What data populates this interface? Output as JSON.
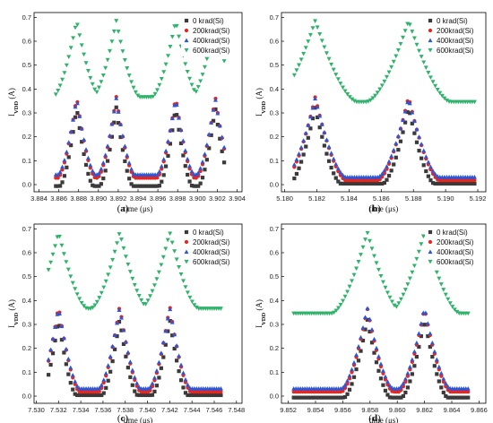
{
  "legend_labels": [
    "0 krad(Si)",
    "200krad(Si)",
    "400krad(Si)",
    "600krad(Si)"
  ],
  "ylabel_main": "I",
  "ylabel_sub": "VDD",
  "ylabel_unit": "(A)",
  "xlabel": "time (μs)",
  "colors": {
    "s0": "#3a3a3a",
    "s200": "#e8251f",
    "s400": "#2a56d9",
    "s600": "#2fb36b"
  },
  "chart_data": [
    {
      "type": "scatter",
      "caption": "(a)",
      "xlabel": "time (μs)",
      "ylabel": "I_VDD (A)",
      "xlim": [
        3.8835,
        3.9045
      ],
      "ylim": [
        -0.03,
        0.72
      ],
      "xticks": [
        "3.884",
        "3.886",
        "3.888",
        "3.890",
        "3.892",
        "3.894",
        "3.896",
        "3.898",
        "3.900",
        "3.902",
        "3.904"
      ],
      "xtick_values": [
        3.884,
        3.886,
        3.888,
        3.89,
        3.892,
        3.894,
        3.896,
        3.898,
        3.9,
        3.902,
        3.904
      ],
      "yticks": [
        "0.0",
        "0.1",
        "0.2",
        "0.3",
        "0.4",
        "0.5",
        "0.6",
        "0.7"
      ],
      "ytick_values": [
        0.0,
        0.1,
        0.2,
        0.3,
        0.4,
        0.5,
        0.6,
        0.7
      ],
      "series": [
        {
          "name": "0 krad(Si)",
          "kind": "peaks",
          "start": 3.8857,
          "end": 3.9027,
          "peaks": [
            3.8878,
            3.8918,
            3.8978,
            3.9018
          ],
          "low": 0.0,
          "high": 0.33,
          "width": 0.0017
        },
        {
          "name": "200krad(Si)",
          "kind": "peaks",
          "start": 3.8857,
          "end": 3.9027,
          "peaks": [
            3.8878,
            3.8918,
            3.8978,
            3.9018
          ],
          "low": 0.03,
          "high": 0.37,
          "width": 0.0019
        },
        {
          "name": "400krad(Si)",
          "kind": "peaks",
          "start": 3.8857,
          "end": 3.9027,
          "peaks": [
            3.8878,
            3.8918,
            3.8978,
            3.9018
          ],
          "low": 0.04,
          "high": 0.36,
          "width": 0.0019
        },
        {
          "name": "600krad(Si)",
          "kind": "peaks",
          "start": 3.8857,
          "end": 3.9027,
          "peaks": [
            3.8878,
            3.8918,
            3.8978,
            3.9018
          ],
          "low": 0.36,
          "high": 0.68,
          "width": 0.0024
        }
      ]
    },
    {
      "type": "scatter",
      "caption": "(b)",
      "xlabel": "time (μs)",
      "ylabel": "I_VDD (A)",
      "xlim": [
        5.1798,
        5.1925
      ],
      "ylim": [
        -0.03,
        0.72
      ],
      "xticks": [
        "5.180",
        "5.182",
        "5.184",
        "5.186",
        "5.188",
        "5.190",
        "5.192"
      ],
      "xtick_values": [
        5.18,
        5.182,
        5.184,
        5.186,
        5.188,
        5.19,
        5.192
      ],
      "yticks": [
        "0.0",
        "0.1",
        "0.2",
        "0.3",
        "0.4",
        "0.5",
        "0.6",
        "0.7"
      ],
      "ytick_values": [
        0.0,
        0.1,
        0.2,
        0.3,
        0.4,
        0.5,
        0.6,
        0.7
      ],
      "series": [
        {
          "name": "0 krad(Si)",
          "kind": "peaks",
          "start": 5.1806,
          "end": 5.1918,
          "peaks": [
            5.1819,
            5.1877
          ],
          "low": 0.01,
          "high": 0.33,
          "width": 0.0016
        },
        {
          "name": "200krad(Si)",
          "kind": "peaks",
          "start": 5.1806,
          "end": 5.1918,
          "peaks": [
            5.1819,
            5.1877
          ],
          "low": 0.02,
          "high": 0.37,
          "width": 0.0019
        },
        {
          "name": "400krad(Si)",
          "kind": "peaks",
          "start": 5.1806,
          "end": 5.1918,
          "peaks": [
            5.1819,
            5.1877
          ],
          "low": 0.03,
          "high": 0.36,
          "width": 0.0019
        },
        {
          "name": "600krad(Si)",
          "kind": "peaks",
          "start": 5.1806,
          "end": 5.1918,
          "peaks": [
            5.1819,
            5.1877
          ],
          "low": 0.34,
          "high": 0.68,
          "width": 0.0026
        }
      ]
    },
    {
      "type": "scatter",
      "caption": "(c)",
      "xlabel": "time (μs)",
      "ylabel": "I_VDD (A)",
      "xlim": [
        7.5298,
        7.5485
      ],
      "ylim": [
        -0.03,
        0.72
      ],
      "xticks": [
        "7.530",
        "7.532",
        "7.534",
        "7.536",
        "7.538",
        "7.540",
        "7.542",
        "7.544",
        "7.546",
        "7.548"
      ],
      "xtick_values": [
        7.53,
        7.532,
        7.534,
        7.536,
        7.538,
        7.54,
        7.542,
        7.544,
        7.546,
        7.548
      ],
      "yticks": [
        "0.0",
        "0.1",
        "0.2",
        "0.3",
        "0.4",
        "0.5",
        "0.6",
        "0.7"
      ],
      "ytick_values": [
        0.0,
        0.1,
        0.2,
        0.3,
        0.4,
        0.5,
        0.6,
        0.7
      ],
      "series": [
        {
          "name": "0 krad(Si)",
          "kind": "peaks",
          "start": 7.5311,
          "end": 7.5466,
          "peaks": [
            7.532,
            7.5375,
            7.542
          ],
          "low": 0.01,
          "high": 0.33,
          "width": 0.0016
        },
        {
          "name": "200krad(Si)",
          "kind": "peaks",
          "start": 7.5311,
          "end": 7.5466,
          "peaks": [
            7.532,
            7.5375,
            7.542
          ],
          "low": 0.02,
          "high": 0.38,
          "width": 0.0019
        },
        {
          "name": "400krad(Si)",
          "kind": "peaks",
          "start": 7.5311,
          "end": 7.5466,
          "peaks": [
            7.532,
            7.5375,
            7.542
          ],
          "low": 0.03,
          "high": 0.37,
          "width": 0.0019
        },
        {
          "name": "600krad(Si)",
          "kind": "peaks",
          "start": 7.5311,
          "end": 7.5466,
          "peaks": [
            7.532,
            7.5375,
            7.542
          ],
          "low": 0.36,
          "high": 0.68,
          "width": 0.0026
        }
      ]
    },
    {
      "type": "scatter",
      "caption": "(d)",
      "xlabel": "time (μs)",
      "ylabel": "I_VDD (A)",
      "xlim": [
        9.8515,
        9.8665
      ],
      "ylim": [
        -0.03,
        0.72
      ],
      "xticks": [
        "9.852",
        "9.854",
        "9.856",
        "9.858",
        "9.860",
        "9.862",
        "9.864",
        "9.866"
      ],
      "xtick_values": [
        9.852,
        9.854,
        9.856,
        9.858,
        9.86,
        9.862,
        9.864,
        9.866
      ],
      "yticks": [
        "0.0",
        "0.1",
        "0.2",
        "0.3",
        "0.4",
        "0.5",
        "0.6",
        "0.7"
      ],
      "ytick_values": [
        0.0,
        0.1,
        0.2,
        0.3,
        0.4,
        0.5,
        0.6,
        0.7
      ],
      "series": [
        {
          "name": "0 krad(Si)",
          "kind": "peaks",
          "start": 9.8524,
          "end": 9.8652,
          "peaks": [
            9.8578,
            9.862
          ],
          "low": 0.0,
          "high": 0.33,
          "width": 0.0017
        },
        {
          "name": "200krad(Si)",
          "kind": "peaks",
          "start": 9.8524,
          "end": 9.8652,
          "peaks": [
            9.8578,
            9.862
          ],
          "low": 0.02,
          "high": 0.37,
          "width": 0.0019
        },
        {
          "name": "400krad(Si)",
          "kind": "peaks",
          "start": 9.8524,
          "end": 9.8652,
          "peaks": [
            9.8578,
            9.862
          ],
          "low": 0.03,
          "high": 0.37,
          "width": 0.0019
        },
        {
          "name": "600krad(Si)",
          "kind": "peaks",
          "start": 9.8524,
          "end": 9.8652,
          "peaks": [
            9.8578,
            9.862
          ],
          "low": 0.34,
          "high": 0.68,
          "width": 0.0026
        }
      ]
    }
  ]
}
